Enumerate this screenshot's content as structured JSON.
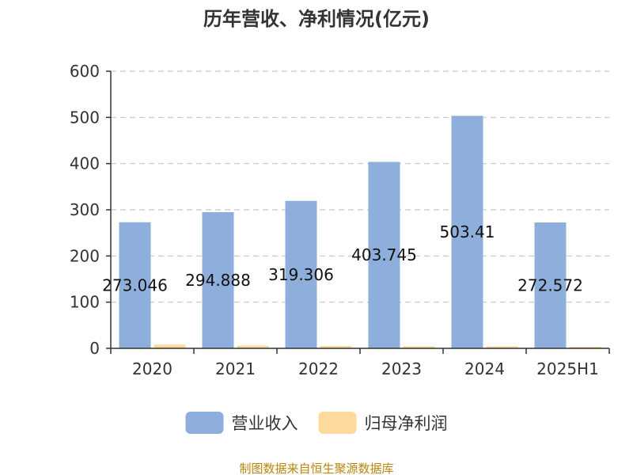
{
  "chart_data": {
    "type": "bar",
    "title": "历年营收、净利情况(亿元)",
    "categories": [
      "2020",
      "2021",
      "2022",
      "2023",
      "2024",
      "2025H1"
    ],
    "series": [
      {
        "name": "营业收入",
        "color": "#8eaedb",
        "values": [
          273.046,
          294.888,
          319.306,
          403.745,
          503.41,
          272.572
        ],
        "labels": [
          "273.046",
          "294.888",
          "319.306",
          "403.745",
          "503.41",
          "272.572"
        ]
      },
      {
        "name": "归母净利润",
        "color": "#fdd99b",
        "values": [
          8,
          6,
          5,
          4.5,
          4.5,
          3.5
        ]
      }
    ],
    "ylim": [
      0,
      600
    ],
    "yticks": [
      0,
      100,
      200,
      300,
      400,
      500,
      600
    ],
    "grid": true,
    "legend": "bottom-center"
  },
  "source_text": "制图数据来自恒生聚源数据库"
}
